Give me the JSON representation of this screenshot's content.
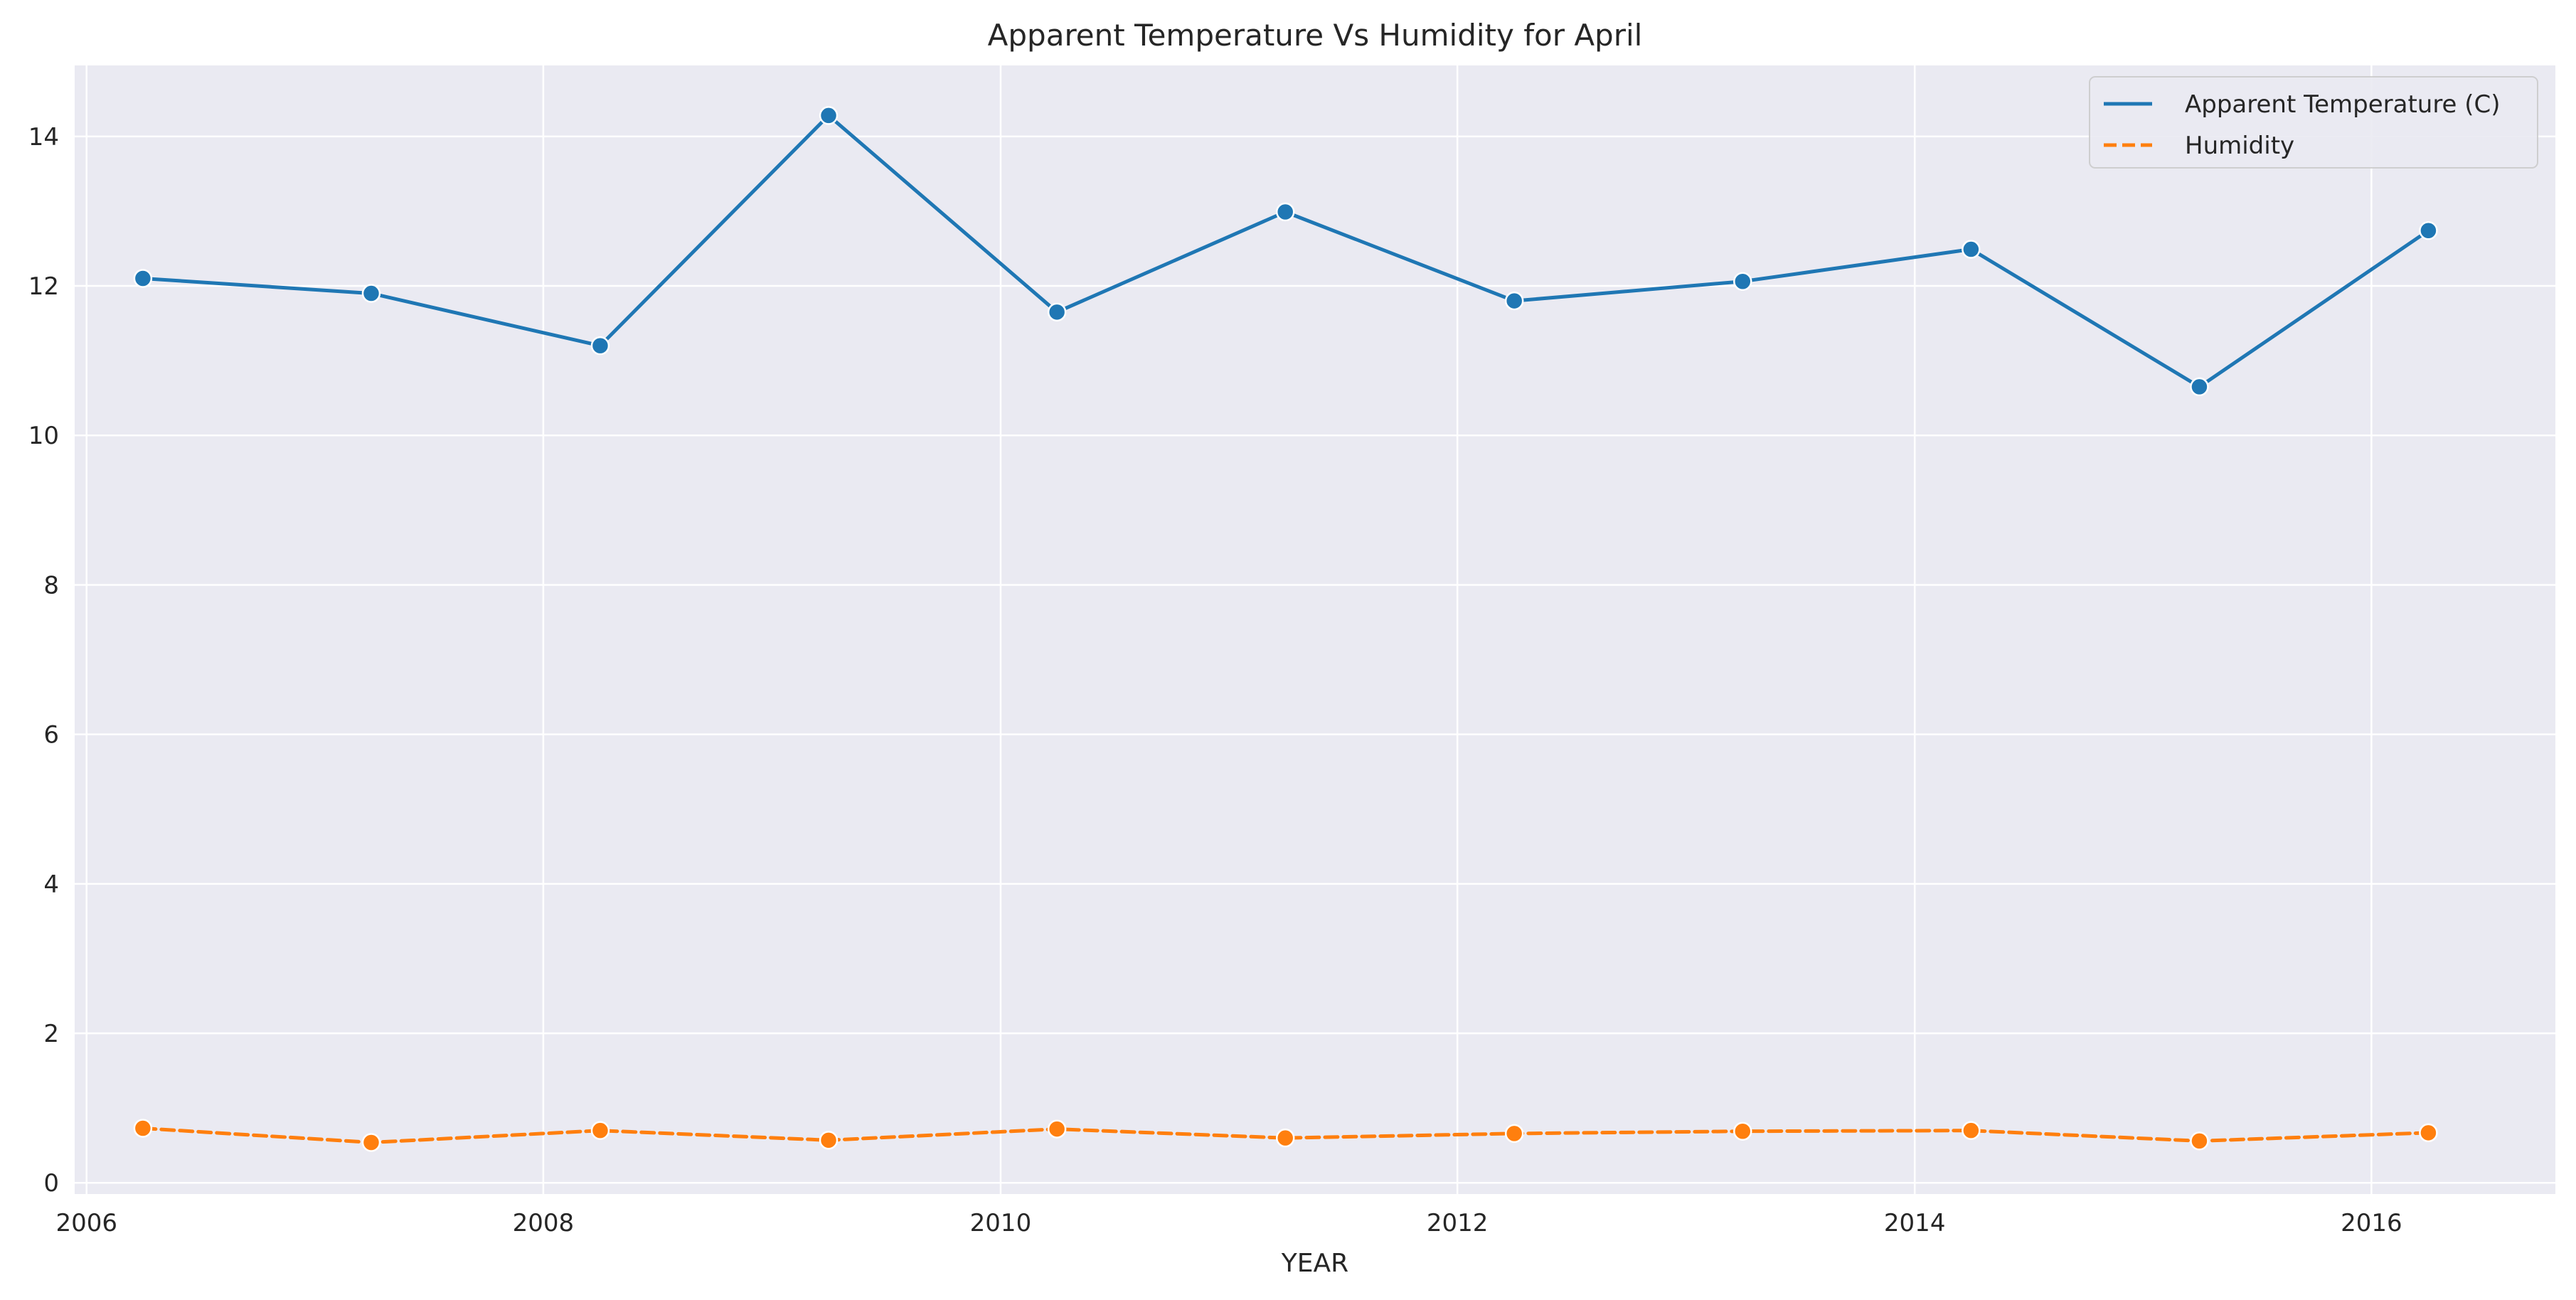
{
  "chart_data": {
    "type": "line",
    "title": "Apparent Temperature Vs Humidity for April",
    "xlabel": "YEAR",
    "ylabel": "",
    "xlim": [
      "2005-12-13",
      "2016-10-21"
    ],
    "ylim": [
      -0.15,
      14.95
    ],
    "x_ticks": [
      "2006",
      "2008",
      "2010",
      "2012",
      "2014",
      "2016"
    ],
    "y_ticks": [
      "0",
      "2",
      "4",
      "6",
      "8",
      "10",
      "12",
      "14"
    ],
    "grid": true,
    "legend_position": "top-right",
    "x": [
      "2006-04-01",
      "2007-04-01",
      "2008-04-01",
      "2009-04-01",
      "2010-04-01",
      "2011-04-01",
      "2012-04-01",
      "2013-04-01",
      "2014-04-01",
      "2015-04-01",
      "2016-04-01"
    ],
    "series": [
      {
        "name": "Apparent Temperature (C)",
        "color": "#1f77b4",
        "line_style": "solid",
        "values": [
          12.1,
          11.9,
          11.2,
          14.28,
          11.65,
          12.99,
          11.8,
          12.06,
          12.49,
          10.65,
          12.74
        ]
      },
      {
        "name": "Humidity",
        "color": "#ff7f0e",
        "line_style": "dashed",
        "values": [
          0.73,
          0.54,
          0.7,
          0.57,
          0.72,
          0.6,
          0.66,
          0.69,
          0.7,
          0.56,
          0.67
        ]
      }
    ],
    "background_color": "#eaeaf2",
    "grid_color": "#ffffff"
  }
}
